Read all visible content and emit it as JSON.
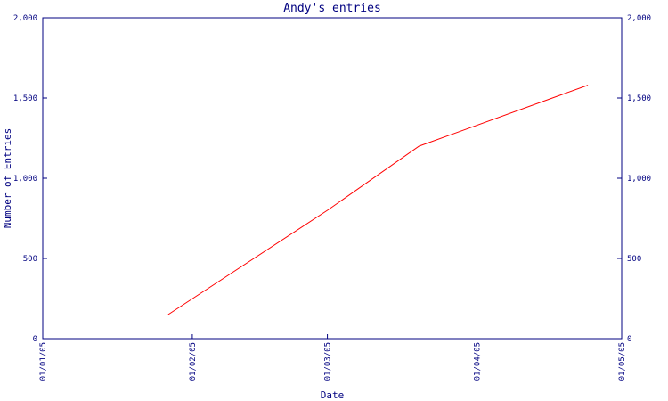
{
  "chart_data": {
    "type": "line",
    "title": "Andy's entries",
    "xlabel": "Date",
    "ylabel": "Number of Entries",
    "x_ticks": [
      "01/01/05",
      "01/02/05",
      "01/03/05",
      "01/04/05",
      "01/05/05"
    ],
    "y_ticks": [
      "0",
      "500",
      "1,000",
      "1,500",
      "2,000"
    ],
    "ylim": [
      0,
      2000
    ],
    "xlim": [
      "2005-01-01",
      "2005-05-01"
    ],
    "grid": false,
    "series": [
      {
        "color": "#ff0000",
        "points": [
          {
            "x": "2005-01-27",
            "y": 150
          },
          {
            "x": "2005-03-01",
            "y": 800
          },
          {
            "x": "2005-03-20",
            "y": 1200
          },
          {
            "x": "2005-04-24",
            "y": 1580
          }
        ]
      }
    ],
    "axis_color": "#000080"
  }
}
